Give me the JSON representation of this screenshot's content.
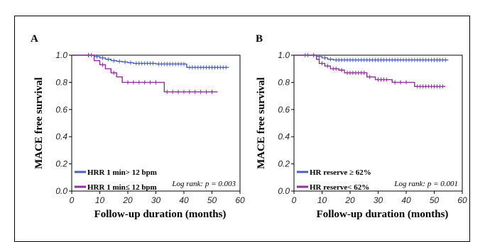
{
  "chart_data": [
    {
      "type": "line",
      "panel_label": "A",
      "ylabel": "MACE free survival",
      "xlabel": "Follow-up duration (months)",
      "xlim": [
        0,
        60
      ],
      "ylim": [
        0.0,
        1.0
      ],
      "xticks": [
        "0",
        "10",
        "20",
        "30",
        "40",
        "50",
        "60"
      ],
      "yticks": [
        "0.0",
        "0.2",
        "0.4",
        "0.6",
        "0.8",
        "1.0"
      ],
      "annotation": "Log rank: p = 0.003",
      "legend_position": "bottom-left",
      "series": [
        {
          "name": "HRR 1 min> 12 bpm",
          "color": "#4a5fc1",
          "x": [
            0,
            5,
            8,
            10,
            12,
            14,
            16,
            18,
            20,
            22,
            30,
            41,
            56
          ],
          "y": [
            1.0,
            1.0,
            0.99,
            0.98,
            0.97,
            0.96,
            0.955,
            0.95,
            0.945,
            0.94,
            0.935,
            0.91,
            0.91
          ],
          "censor_x": [
            6,
            7,
            9,
            11,
            13,
            15,
            17,
            19,
            21,
            23,
            24,
            25,
            26,
            27,
            28,
            29,
            31,
            32,
            33,
            34,
            35,
            36,
            37,
            38,
            39,
            40,
            42,
            43,
            44,
            45,
            46,
            47,
            48,
            49,
            50,
            51,
            52,
            53,
            54,
            55
          ]
        },
        {
          "name": "HRR 1 min≤ 12 bpm",
          "color": "#8e2f9a",
          "x": [
            0,
            5,
            8,
            10,
            12,
            14,
            16,
            18,
            33,
            52
          ],
          "y": [
            1.0,
            1.0,
            0.96,
            0.93,
            0.9,
            0.87,
            0.84,
            0.8,
            0.73,
            0.73
          ],
          "censor_x": [
            6,
            11,
            15,
            20,
            22,
            24,
            26,
            28,
            30,
            34,
            36,
            38,
            40,
            42,
            44,
            46,
            48,
            50
          ]
        }
      ]
    },
    {
      "type": "line",
      "panel_label": "B",
      "ylabel": "MACE free survival",
      "xlabel": "Follow-up duration (months)",
      "xlim": [
        0,
        60
      ],
      "ylim": [
        0.0,
        1.0
      ],
      "xticks": [
        "0",
        "10",
        "20",
        "30",
        "40",
        "50",
        "60"
      ],
      "yticks": [
        "0.0",
        "0.2",
        "0.4",
        "0.6",
        "0.8",
        "1.0"
      ],
      "annotation": "Log rank: p = 0.001",
      "legend_position": "bottom-left",
      "series": [
        {
          "name": "HR reserve ≥ 62%",
          "color": "#4a5fc1",
          "x": [
            0,
            6,
            8,
            10,
            12,
            14,
            55
          ],
          "y": [
            1.0,
            1.0,
            0.99,
            0.98,
            0.97,
            0.965,
            0.965
          ],
          "censor_x": [
            4,
            5,
            7,
            9,
            11,
            13,
            15,
            16,
            17,
            18,
            19,
            20,
            21,
            22,
            23,
            24,
            25,
            26,
            27,
            28,
            29,
            30,
            31,
            32,
            33,
            34,
            35,
            36,
            37,
            38,
            39,
            40,
            41,
            42,
            43,
            44,
            45,
            46,
            47,
            48,
            49,
            50,
            51,
            52,
            53,
            54
          ]
        },
        {
          "name": "HR reserve< 62%",
          "color": "#8e2f9a",
          "x": [
            0,
            6,
            8,
            9,
            11,
            13,
            16,
            18,
            26,
            29,
            35,
            43,
            54
          ],
          "y": [
            1.0,
            1.0,
            0.97,
            0.94,
            0.92,
            0.9,
            0.89,
            0.87,
            0.84,
            0.82,
            0.8,
            0.77,
            0.77
          ],
          "censor_x": [
            7,
            10,
            12,
            14,
            15,
            17,
            19,
            20,
            21,
            22,
            23,
            24,
            25,
            27,
            30,
            31,
            32,
            33,
            36,
            38,
            40,
            44,
            45,
            46,
            47,
            48,
            49,
            50,
            51,
            52,
            53
          ]
        }
      ]
    }
  ]
}
